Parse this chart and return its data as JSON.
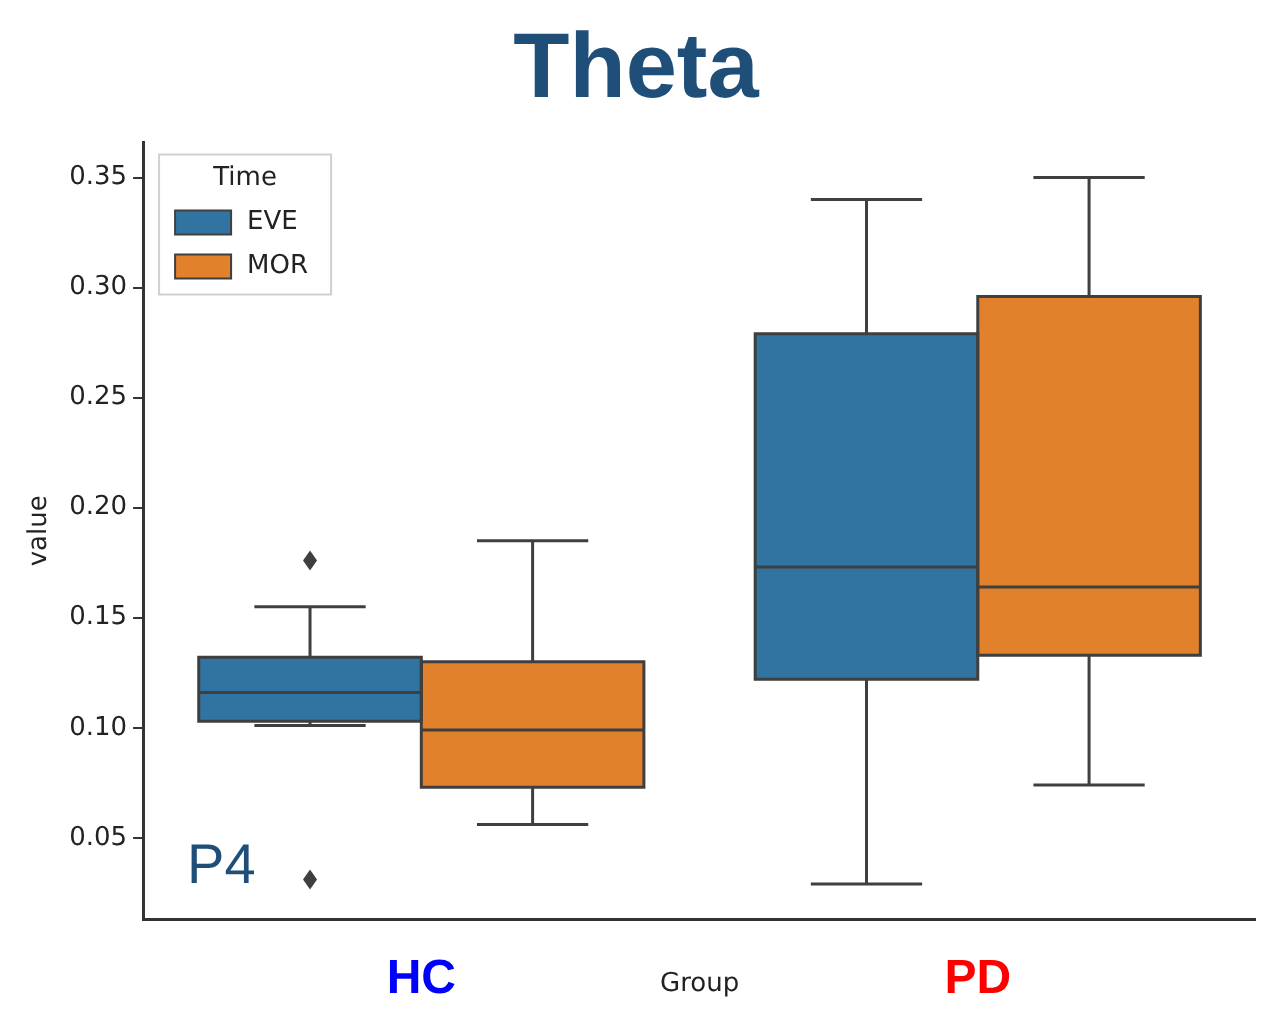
{
  "chart_data": {
    "type": "box",
    "title": "Theta",
    "xlabel": "Group",
    "ylabel": "value",
    "legend_title": "Time",
    "legend": "top left",
    "categories": [
      "HC",
      "PD"
    ],
    "series": [
      {
        "name": "EVE",
        "color": "#3274a1",
        "boxes": [
          {
            "low": 0.101,
            "q1": 0.103,
            "median": 0.116,
            "q3": 0.132,
            "high": 0.155,
            "outliers": [
              0.176,
              0.031
            ]
          },
          {
            "low": 0.029,
            "q1": 0.122,
            "median": 0.173,
            "q3": 0.279,
            "high": 0.34
          }
        ]
      },
      {
        "name": "MOR",
        "color": "#e1812c",
        "boxes": [
          {
            "low": 0.056,
            "q1": 0.073,
            "median": 0.099,
            "q3": 0.13,
            "high": 0.185
          },
          {
            "low": 0.074,
            "q1": 0.133,
            "median": 0.164,
            "q3": 0.296,
            "high": 0.35
          }
        ]
      }
    ],
    "ylim": [
      0.013,
      0.366
    ],
    "yticks": [
      0.05,
      {
        "value": 0.1,
        "label": "0.10"
      },
      0.15,
      {
        "value": 0.2,
        "label": "0.20"
      },
      0.25,
      {
        "value": 0.3,
        "label": "0.30"
      },
      0.35
    ],
    "grid": false,
    "annotations": [
      "P4"
    ]
  }
}
